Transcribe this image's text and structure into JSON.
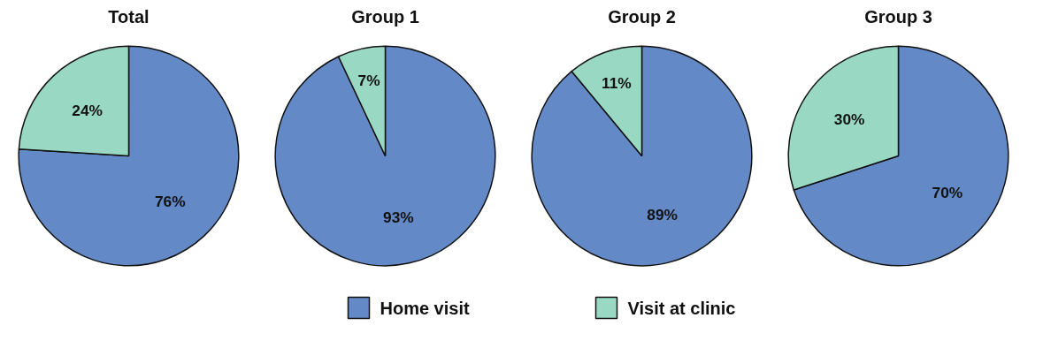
{
  "chart_data": [
    {
      "type": "pie",
      "title": "Total",
      "categories": [
        "Home visit",
        "Visit at clinic"
      ],
      "values": [
        76,
        24
      ],
      "colors": [
        "#6389c6",
        "#99d9c4"
      ],
      "value_labels": [
        "76%",
        "24%"
      ],
      "legend": "bottom"
    },
    {
      "type": "pie",
      "title": "Group 1",
      "categories": [
        null,
        null
      ],
      "values": [
        93,
        7
      ],
      "colors": [
        "#6389c6",
        "#99d9c4"
      ],
      "value_labels": [
        "93%",
        "7%"
      ]
    },
    {
      "type": "pie",
      "title": "Group 2",
      "categories": [
        null,
        null
      ],
      "values": [
        89,
        11
      ],
      "colors": [
        "#6389c6",
        "#99d9c4"
      ],
      "value_labels": [
        "89%",
        "11%"
      ]
    },
    {
      "type": "pie",
      "title": "Group 3",
      "categories": [
        null,
        null
      ],
      "values": [
        70,
        30
      ],
      "colors": [
        "#6389c6",
        "#99d9c4"
      ],
      "value_labels": [
        "70%",
        "30%"
      ]
    }
  ]
}
